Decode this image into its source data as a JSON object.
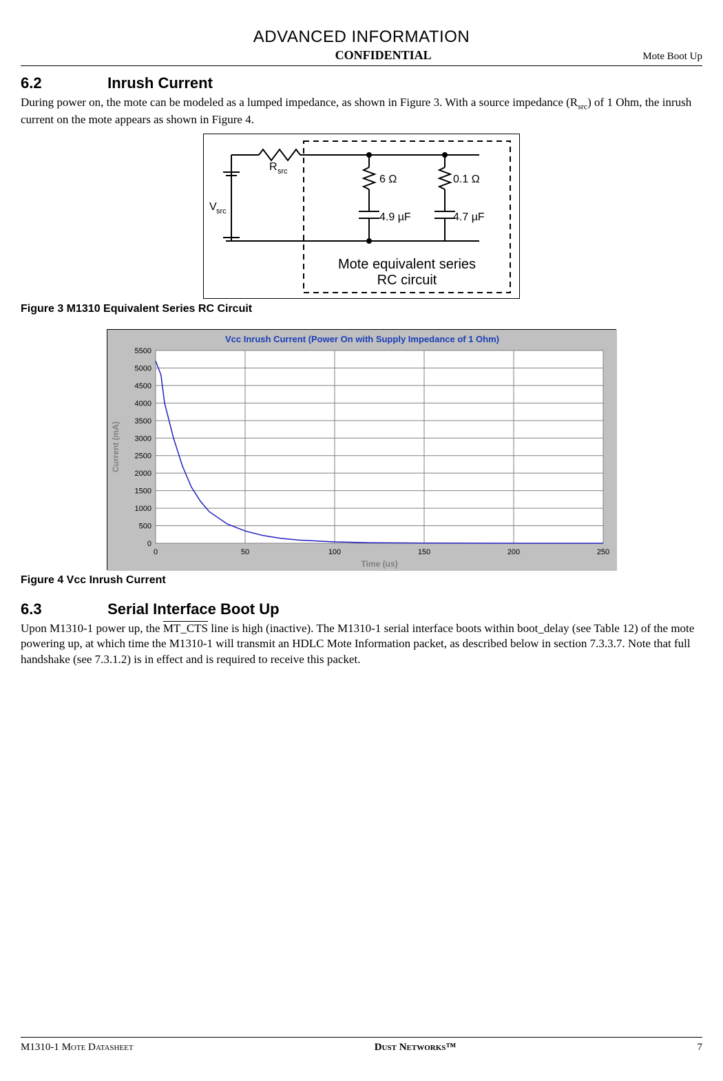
{
  "banner": "ADVANCED INFORMATION",
  "confidential": "CONFIDENTIAL",
  "header_right": "Mote Boot Up",
  "section_62": {
    "num": "6.2",
    "title": "Inrush Current",
    "body_pre": "During power on, the mote can be modeled as a lumped impedance, as shown in Figure 3. With a source impedance (R",
    "body_sub": "src",
    "body_post": ") of 1 Ohm, the inrush current on the mote appears as shown in Figure 4."
  },
  "figure3": {
    "caption": "Figure 3    M1310 Equivalent Series RC Circuit",
    "vsrc": "Vsrc",
    "rsrc": "Rsrc",
    "r1": "6 Ω",
    "r2": "0.1 Ω",
    "c1": "4.9 µF",
    "c2": "4.7 µF",
    "box_title1": "Mote equivalent series",
    "box_title2": "RC circuit"
  },
  "figure4": {
    "caption": "Figure 4    Vcc Inrush Current",
    "chart_title": "Vcc Inrush Current (Power On with Supply Impedance of 1 Ohm)",
    "chart_title_color": "#1a3db8",
    "xlabel": "Time (us)",
    "ylabel": "Current (mA)",
    "xlabel_color": "#808080",
    "ylabel_color": "#808080",
    "grid_color": "#808080",
    "bg_color": "#c0c0c0",
    "plot_bg": "#ffffff",
    "line_color": "#2020c0",
    "x_ticks": [
      0,
      50,
      100,
      150,
      200,
      250
    ],
    "y_ticks": [
      0,
      500,
      1000,
      1500,
      2000,
      2500,
      3000,
      3500,
      4000,
      4500,
      5000,
      5500
    ],
    "xlim": [
      0,
      250
    ],
    "ylim": [
      0,
      5500
    ],
    "data": [
      [
        0,
        5200
      ],
      [
        3,
        4800
      ],
      [
        5,
        4000
      ],
      [
        10,
        3000
      ],
      [
        15,
        2200
      ],
      [
        20,
        1600
      ],
      [
        25,
        1200
      ],
      [
        30,
        900
      ],
      [
        40,
        550
      ],
      [
        50,
        350
      ],
      [
        60,
        220
      ],
      [
        70,
        140
      ],
      [
        80,
        90
      ],
      [
        100,
        40
      ],
      [
        120,
        15
      ],
      [
        150,
        5
      ],
      [
        200,
        0
      ],
      [
        250,
        0
      ]
    ]
  },
  "section_63": {
    "num": "6.3",
    "title": "Serial Interface Boot Up",
    "body_pre": "Upon M1310-1 power up, the ",
    "mtcts": "MT_CTS",
    "body_post": " line is high (inactive). The M1310-1 serial interface boots within boot_delay (see Table 12) of the mote powering up, at which time the M1310-1 will transmit an HDLC Mote Information packet, as described below in section 7.3.3.7. Note that full handshake (see 7.3.1.2) is in effect and is required to receive this packet."
  },
  "footer": {
    "left": "M1310-1 Mote Datasheet",
    "center": "Dust Networks™",
    "page": "7"
  }
}
